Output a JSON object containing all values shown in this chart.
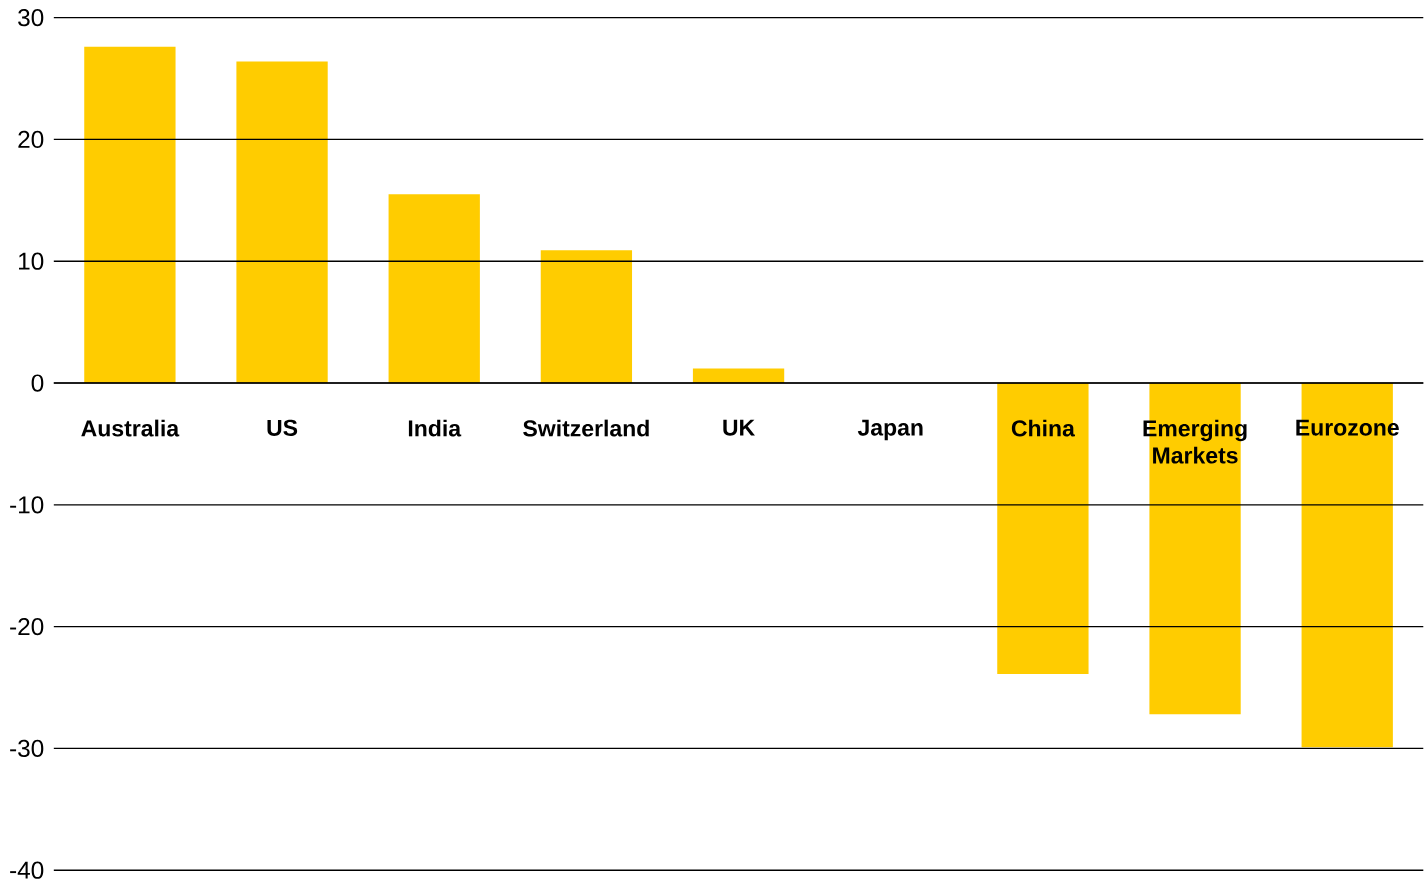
{
  "chart_data": {
    "type": "bar",
    "categories": [
      "Australia",
      "US",
      "India",
      "Switzerland",
      "UK",
      "Japan",
      "China",
      "Emerging Markets",
      "Eurozone"
    ],
    "values": [
      27.6,
      26.4,
      15.5,
      10.9,
      1.2,
      0,
      -23.9,
      -27.2,
      -29.9
    ],
    "color": "#ffcc00",
    "ylim": [
      -40,
      30
    ],
    "yticks": [
      -40,
      -30,
      -20,
      -10,
      0,
      10,
      20,
      30
    ],
    "grid": "y"
  }
}
